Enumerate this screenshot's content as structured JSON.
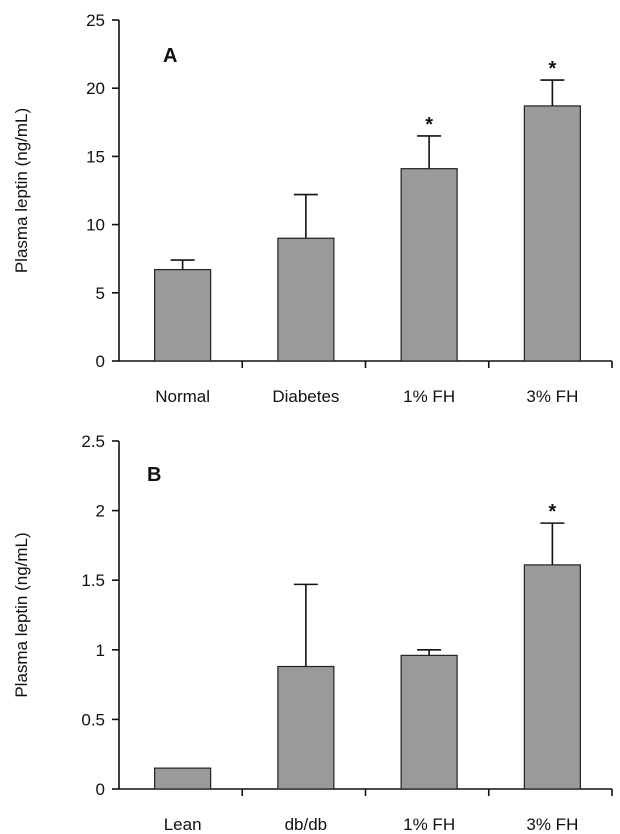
{
  "chart_data": [
    {
      "type": "bar",
      "panel_label": "A",
      "ylabel": "Plasma leptin (ng/mL)",
      "ylim": [
        0,
        25
      ],
      "yticks": [
        0,
        5,
        10,
        15,
        20,
        25
      ],
      "grid": false,
      "categories": [
        "Normal",
        "Diabetes",
        "1% FH",
        "3% FH"
      ],
      "values": [
        6.7,
        9.0,
        14.1,
        18.7
      ],
      "errors": [
        0.7,
        3.2,
        2.4,
        1.9
      ],
      "significance": [
        "",
        "",
        "*",
        "*"
      ]
    },
    {
      "type": "bar",
      "panel_label": "B",
      "ylabel": "Plasma leptin (ng/mL)",
      "ylim": [
        0,
        2.5
      ],
      "yticks": [
        0,
        0.5,
        1,
        1.5,
        2,
        2.5
      ],
      "grid": false,
      "categories": [
        "Lean",
        "db/db",
        "1% FH",
        "3% FH"
      ],
      "values": [
        0.15,
        0.88,
        0.96,
        1.61
      ],
      "errors": [
        0,
        0.59,
        0.04,
        0.3
      ],
      "significance": [
        "",
        "",
        "",
        "*"
      ]
    }
  ],
  "colors": {
    "bar_fill": "#9a9a9a",
    "bar_edge": "#222222",
    "axis": "#111111"
  }
}
